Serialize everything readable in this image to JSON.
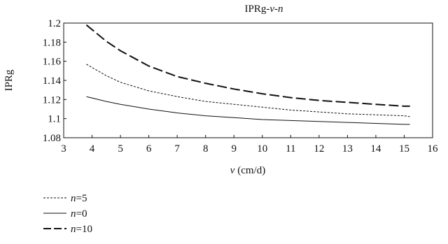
{
  "chart_data": {
    "type": "line",
    "title_parts": [
      "IPRg-",
      "v",
      "-",
      "n"
    ],
    "xlabel_parts": [
      "v",
      " (cm/d)"
    ],
    "ylabel": "IPRg",
    "xlim": [
      3,
      16
    ],
    "ylim": [
      1.08,
      1.2
    ],
    "xticks": [
      "3",
      "4",
      "5",
      "6",
      "7",
      "8",
      "9",
      "10",
      "11",
      "12",
      "13",
      "14",
      "15",
      "16"
    ],
    "yticks": [
      "1.08",
      "1.1",
      "1.12",
      "1.14",
      "1.16",
      "1.18",
      "1.2"
    ],
    "grid": false,
    "legend_position": "below",
    "series": [
      {
        "name_parts": [
          "n",
          "=5"
        ],
        "style": "dotted",
        "x": [
          3.8,
          4.5,
          5,
          6,
          7,
          8,
          9,
          10,
          11,
          12,
          13,
          14,
          15,
          15.2
        ],
        "y": [
          1.157,
          1.145,
          1.138,
          1.129,
          1.123,
          1.118,
          1.115,
          1.112,
          1.109,
          1.107,
          1.105,
          1.104,
          1.103,
          1.102
        ]
      },
      {
        "name_parts": [
          "n",
          "=0"
        ],
        "style": "solid",
        "x": [
          3.8,
          4.5,
          5,
          6,
          7,
          8,
          9,
          10,
          11,
          12,
          13,
          14,
          15,
          15.2
        ],
        "y": [
          1.123,
          1.118,
          1.115,
          1.11,
          1.106,
          1.103,
          1.101,
          1.099,
          1.098,
          1.097,
          1.096,
          1.095,
          1.094,
          1.094
        ]
      },
      {
        "name_parts": [
          "n",
          "=10"
        ],
        "style": "long-dash",
        "x": [
          3.8,
          4.5,
          5,
          6,
          7,
          8,
          9,
          10,
          11,
          12,
          13,
          14,
          15,
          15.2
        ],
        "y": [
          1.198,
          1.181,
          1.171,
          1.155,
          1.144,
          1.137,
          1.131,
          1.126,
          1.122,
          1.119,
          1.117,
          1.115,
          1.113,
          1.113
        ]
      }
    ]
  }
}
